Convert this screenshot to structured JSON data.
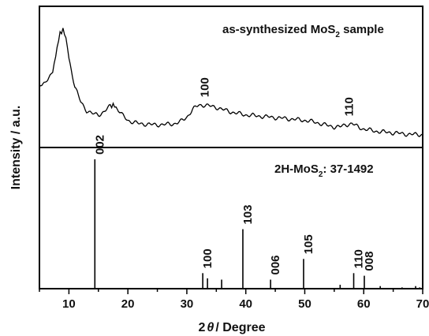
{
  "chart_data": [
    {
      "type": "line",
      "panel": "top",
      "title": "as-synthesized MoS",
      "title_sub": "2",
      "title_tail": " sample",
      "xlim": [
        5,
        70
      ],
      "x": [
        5.0,
        6.0,
        7.0,
        7.5,
        8.0,
        8.5,
        9.0,
        9.5,
        10.0,
        11.0,
        12.0,
        13.0,
        14.0,
        15.0,
        16.0,
        17.0,
        17.5,
        18.0,
        19.0,
        20.0,
        21.0,
        22.0,
        24.0,
        26.0,
        28.0,
        29.0,
        30.0,
        31.0,
        32.0,
        33.0,
        34.0,
        35.0,
        36.0,
        38.0,
        40.0,
        42.0,
        44.0,
        46.0,
        48.0,
        50.0,
        52.0,
        54.0,
        55.0,
        56.0,
        57.0,
        58.0,
        59.0,
        60.0,
        62.0,
        64.0,
        66.0,
        68.0,
        70.0
      ],
      "y": [
        0.5,
        0.52,
        0.58,
        0.68,
        0.84,
        0.97,
        1.0,
        0.93,
        0.74,
        0.48,
        0.34,
        0.26,
        0.23,
        0.22,
        0.25,
        0.3,
        0.31,
        0.29,
        0.22,
        0.17,
        0.15,
        0.14,
        0.13,
        0.13,
        0.14,
        0.16,
        0.2,
        0.27,
        0.31,
        0.31,
        0.3,
        0.29,
        0.27,
        0.24,
        0.22,
        0.21,
        0.2,
        0.19,
        0.18,
        0.17,
        0.15,
        0.12,
        0.11,
        0.11,
        0.13,
        0.14,
        0.11,
        0.09,
        0.07,
        0.06,
        0.05,
        0.04,
        0.04
      ],
      "peak_labels": [
        {
          "text": "100",
          "x": 33
        },
        {
          "text": "110",
          "x": 57.5
        }
      ]
    },
    {
      "type": "bar",
      "panel": "bottom",
      "title": "2H-MoS",
      "title_sub": "2",
      "title_tail": ": 37-1492",
      "xlim": [
        5,
        70
      ],
      "x": [
        14.4,
        32.7,
        33.5,
        35.9,
        39.5,
        44.2,
        49.8,
        56.0,
        58.3,
        60.1,
        62.8,
        66.5,
        68.8,
        69.5
      ],
      "values": [
        100,
        12,
        8,
        7,
        46,
        7,
        23,
        3,
        12,
        10,
        2,
        1,
        2,
        1
      ],
      "peak_labels": [
        {
          "text": "002",
          "x": 14.4
        },
        {
          "text": "100",
          "x": 32.7
        },
        {
          "text": "103",
          "x": 39.5
        },
        {
          "text": "006",
          "x": 44.2
        },
        {
          "text": "105",
          "x": 49.8
        },
        {
          "text": "110",
          "x": 58.3
        },
        {
          "text": "008",
          "x": 60.1
        }
      ]
    }
  ],
  "axes": {
    "xlabel_pre": "2",
    "xlabel_theta": "θ",
    "xlabel_post": "/ Degree",
    "ylabel": "Intensity / a.u.",
    "xticks": [
      10,
      20,
      30,
      40,
      50,
      60,
      70
    ]
  }
}
